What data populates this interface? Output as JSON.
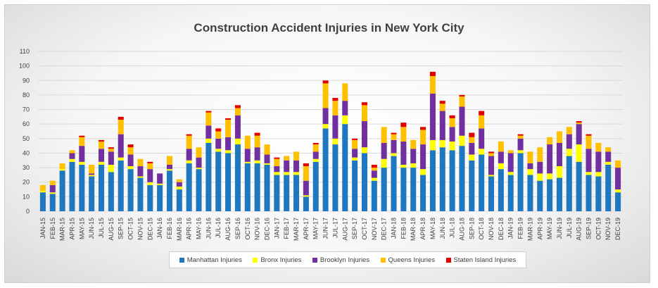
{
  "chart_data": {
    "type": "bar",
    "stacked": true,
    "title": "Construction Accident Injuries in New York City",
    "xlabel": "",
    "ylabel": "",
    "ylim": [
      0,
      110
    ],
    "yticks": [
      0,
      10,
      20,
      30,
      40,
      50,
      60,
      70,
      80,
      90,
      100,
      110
    ],
    "grid": true,
    "legend_position": "bottom",
    "categories": [
      "JAN-15",
      "FEB-15",
      "MAR-15",
      "APR-15",
      "MAY-15",
      "JUN-15",
      "JUL-15",
      "AUG-15",
      "SEP-15",
      "OCT-15",
      "NOV-15",
      "DEC-15",
      "JAN-16",
      "FEB-16",
      "MAR-16",
      "APR-16",
      "MAY-16",
      "JUN-16",
      "JUL-16",
      "AUG-16",
      "SEP-16",
      "OCT-16",
      "NOV-16",
      "DEC-16",
      "JAN-17",
      "FEB-17",
      "MAR-17",
      "APR-17",
      "MAY-17",
      "JUN-17",
      "JUL-17",
      "AUG-17",
      "SEP-17",
      "OCT-17",
      "NOV-17",
      "DEC-17",
      "JAN-18",
      "FEB-18",
      "MAR-18",
      "APR-18",
      "MAY-18",
      "JUN-18",
      "JUL-18",
      "AUG-18",
      "SEP-18",
      "OCT-18",
      "NOV-18",
      "DEC-18",
      "JAN-19",
      "FEB-19",
      "MAR-19",
      "APR-19",
      "MAY-19",
      "JUN-19",
      "JUL-19",
      "AUG-19",
      "SEP-19",
      "OCT-19",
      "NOV-19",
      "DEC-19"
    ],
    "series": [
      {
        "name": "Manhattan Injuries",
        "color": "#1f77c0",
        "values": [
          13,
          12,
          28,
          34,
          32,
          24,
          32,
          27,
          35,
          29,
          23,
          18,
          18,
          28,
          15,
          33,
          29,
          47,
          41,
          40,
          46,
          33,
          33,
          32,
          25,
          25,
          25,
          10,
          34,
          57,
          46,
          60,
          35,
          40,
          21,
          30,
          38,
          30,
          30,
          25,
          42,
          44,
          42,
          45,
          35,
          39,
          24,
          29,
          25,
          40,
          25,
          21,
          22,
          23,
          38,
          34,
          25,
          24,
          32,
          13
        ]
      },
      {
        "name": "Bronx Injuries",
        "color": "#ffff00",
        "values": [
          1,
          1,
          1,
          2,
          2,
          1,
          2,
          5,
          2,
          2,
          1,
          2,
          1,
          1,
          2,
          2,
          1,
          3,
          2,
          2,
          4,
          1,
          2,
          1,
          2,
          2,
          2,
          1,
          2,
          3,
          4,
          6,
          2,
          4,
          2,
          6,
          2,
          2,
          3,
          4,
          7,
          5,
          6,
          7,
          4,
          4,
          1,
          4,
          2,
          2,
          4,
          5,
          4,
          8,
          5,
          12,
          2,
          3,
          2,
          2
        ]
      },
      {
        "name": "Brooklyn Injuries",
        "color": "#7030a0",
        "values": [
          0,
          5,
          0,
          4,
          11,
          1,
          9,
          9,
          16,
          8,
          7,
          9,
          7,
          3,
          3,
          8,
          7,
          9,
          7,
          9,
          16,
          9,
          9,
          6,
          4,
          8,
          8,
          10,
          5,
          11,
          16,
          10,
          6,
          18,
          5,
          11,
          9,
          16,
          10,
          17,
          32,
          20,
          10,
          20,
          8,
          14,
          13,
          8,
          13,
          8,
          4,
          8,
          20,
          16,
          10,
          14,
          16,
          14,
          7,
          15
        ]
      },
      {
        "name": "Queens Injuries",
        "color": "#ffc000",
        "values": [
          4,
          3,
          4,
          2,
          6,
          6,
          5,
          2,
          10,
          5,
          5,
          4,
          0,
          6,
          2,
          9,
          7,
          9,
          5,
          12,
          5,
          9,
          8,
          7,
          5,
          3,
          6,
          10,
          5,
          17,
          10,
          12,
          6,
          11,
          2,
          11,
          4,
          10,
          6,
          10,
          12,
          5,
          6,
          7,
          4,
          9,
          2,
          7,
          2,
          2,
          8,
          10,
          5,
          8,
          5,
          1,
          9,
          6,
          3,
          5
        ]
      },
      {
        "name": "Staten Island Injuries",
        "color": "#e00000",
        "values": [
          0,
          0,
          0,
          0,
          1,
          0,
          1,
          1,
          2,
          2,
          0,
          1,
          0,
          0,
          0,
          1,
          0,
          1,
          2,
          1,
          2,
          0,
          2,
          0,
          1,
          0,
          0,
          2,
          1,
          2,
          2,
          0,
          1,
          2,
          2,
          0,
          1,
          3,
          0,
          2,
          3,
          2,
          2,
          1,
          3,
          3,
          1,
          0,
          0,
          1,
          0,
          0,
          0,
          0,
          0,
          1,
          1,
          0,
          0,
          0
        ]
      }
    ]
  }
}
